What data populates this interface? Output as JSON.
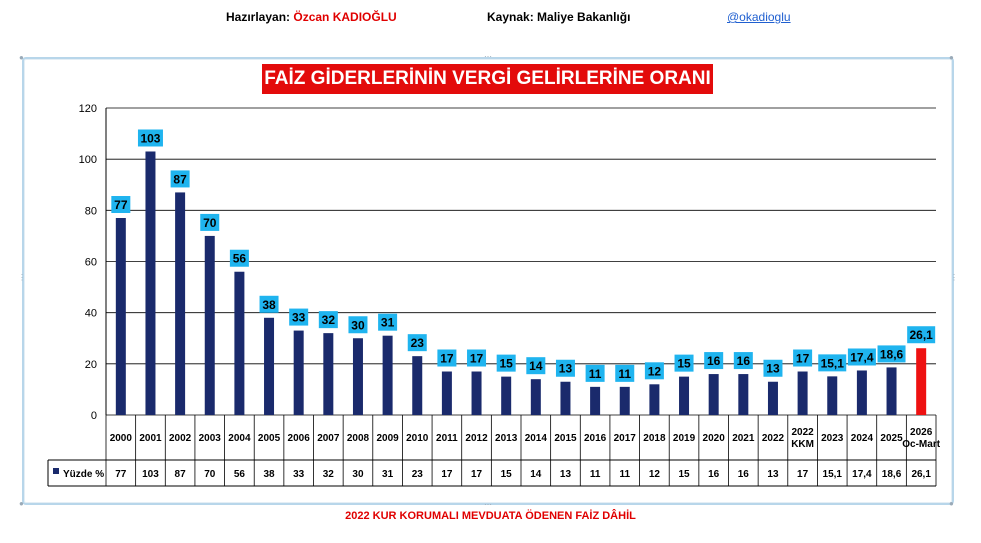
{
  "header": {
    "prepared_label": "Hazırlayan:",
    "prepared_name": "Özcan KADIOĞLU",
    "source_label": "Kaynak:",
    "source_name": "Maliye Bakanlığı",
    "handle": "@okadioglu"
  },
  "footnote": "2022 KUR KORUMALI MEVDUATA ÖDENEN FAİZ DÂHİL",
  "chart_data": {
    "type": "bar",
    "title": "FAİZ GİDERLERİNİN VERGİ GELİRLERİNE ORANI (%)",
    "categories": [
      "2000",
      "2001",
      "2002",
      "2003",
      "2004",
      "2005",
      "2006",
      "2007",
      "2008",
      "2009",
      "2010",
      "2011",
      "2012",
      "2013",
      "2014",
      "2015",
      "2016",
      "2017",
      "2018",
      "2019",
      "2020",
      "2021",
      "2022",
      "2022 KKM",
      "2023",
      "2024",
      "2025",
      "2026 Oc-Mart"
    ],
    "series": [
      {
        "name": "Yüzde %",
        "values": [
          77,
          103,
          87,
          70,
          56,
          38,
          33,
          32,
          30,
          31,
          23,
          17,
          17,
          15,
          14,
          13,
          11,
          11,
          12,
          15,
          16,
          16,
          13,
          17,
          15.1,
          17.4,
          18.6,
          26.1
        ],
        "labels": [
          "77",
          "103",
          "87",
          "70",
          "56",
          "38",
          "33",
          "32",
          "30",
          "31",
          "23",
          "17",
          "17",
          "15",
          "14",
          "13",
          "11",
          "11",
          "12",
          "15",
          "16",
          "16",
          "13",
          "17",
          "15,1",
          "17,4",
          "18,6",
          "26,1"
        ]
      }
    ],
    "ylim": [
      0,
      120
    ],
    "yticks": [
      0,
      20,
      40,
      60,
      80,
      100,
      120
    ],
    "grid": true,
    "legend": "data-table",
    "colors": {
      "bar": "#1a2a6c",
      "highlight": "#ee1111",
      "label_bg": "#1fb4ef"
    },
    "highlight_index": 27
  }
}
